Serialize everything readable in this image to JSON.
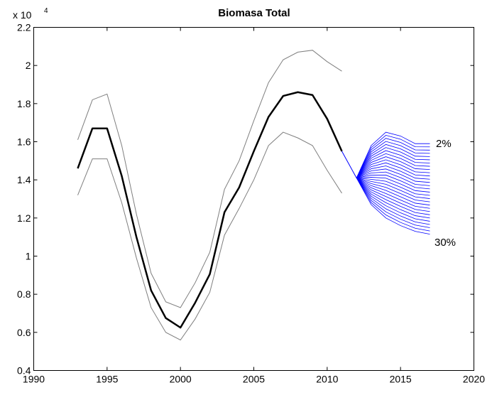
{
  "chart_data": {
    "type": "line",
    "title": "Biomasa Total",
    "xlabel": "",
    "ylabel": "",
    "xlim": [
      1990,
      2020
    ],
    "ylim": [
      0.4,
      2.2
    ],
    "y_scale_label": "x 10",
    "y_scale_exponent": "4",
    "x_ticks": [
      1990,
      1995,
      2000,
      2005,
      2010,
      2015,
      2020
    ],
    "x_tick_labels": [
      "1990",
      "1995",
      "2000",
      "2005",
      "2010",
      "2015",
      "2020"
    ],
    "y_ticks": [
      0.4,
      0.6,
      0.8,
      1.0,
      1.2,
      1.4,
      1.6,
      1.8,
      2.0,
      2.2
    ],
    "y_tick_labels": [
      "0.4",
      "0.6",
      "0.8",
      "1",
      "1.2",
      "1.4",
      "1.6",
      "1.8",
      "2",
      "2.2"
    ],
    "grid": false,
    "legend": "none",
    "series": [
      {
        "role": "estimate",
        "color": "#000000",
        "x": [
          1993,
          1994,
          1995,
          1996,
          1997,
          1998,
          1999,
          2000,
          2001,
          2002,
          2003,
          2004,
          2005,
          2006,
          2007,
          2008,
          2009,
          2010,
          2011,
          2012
        ],
        "y": [
          1.46,
          1.67,
          1.67,
          1.42,
          1.1,
          0.82,
          0.675,
          0.625,
          0.755,
          0.905,
          1.23,
          1.36,
          1.55,
          1.73,
          1.84,
          1.86,
          1.845,
          1.72,
          1.55,
          1.41
        ]
      },
      {
        "role": "upper_bound",
        "color": "#7f7f7f",
        "x": [
          1993,
          1994,
          1995,
          1996,
          1997,
          1998,
          1999,
          2000,
          2001,
          2002,
          2003,
          2004,
          2005,
          2006,
          2007,
          2008,
          2009,
          2010,
          2011
        ],
        "y": [
          1.61,
          1.82,
          1.85,
          1.58,
          1.22,
          0.91,
          0.76,
          0.73,
          0.86,
          1.02,
          1.35,
          1.5,
          1.71,
          1.91,
          2.03,
          2.07,
          2.08,
          2.02,
          1.97
        ]
      },
      {
        "role": "lower_bound",
        "color": "#7f7f7f",
        "x": [
          1993,
          1994,
          1995,
          1996,
          1997,
          1998,
          1999,
          2000,
          2001,
          2002,
          2003,
          2004,
          2005,
          2006,
          2007,
          2008,
          2009,
          2010,
          2011
        ],
        "y": [
          1.32,
          1.51,
          1.51,
          1.28,
          0.99,
          0.73,
          0.6,
          0.56,
          0.67,
          0.81,
          1.11,
          1.25,
          1.4,
          1.58,
          1.65,
          1.62,
          1.58,
          1.45,
          1.33
        ]
      }
    ],
    "projection_fan": {
      "color": "#0000ff",
      "start": [
        2012,
        1.41
      ],
      "x": [
        2012,
        2013,
        2014,
        2015,
        2016,
        2017
      ],
      "count": 29,
      "top_end": [
        1.41,
        1.58,
        1.65,
        1.63,
        1.59,
        1.59
      ],
      "bottom_end": [
        1.41,
        1.27,
        1.2,
        1.16,
        1.13,
        1.115
      ],
      "label_top": "2%",
      "label_bottom": "30%"
    }
  }
}
